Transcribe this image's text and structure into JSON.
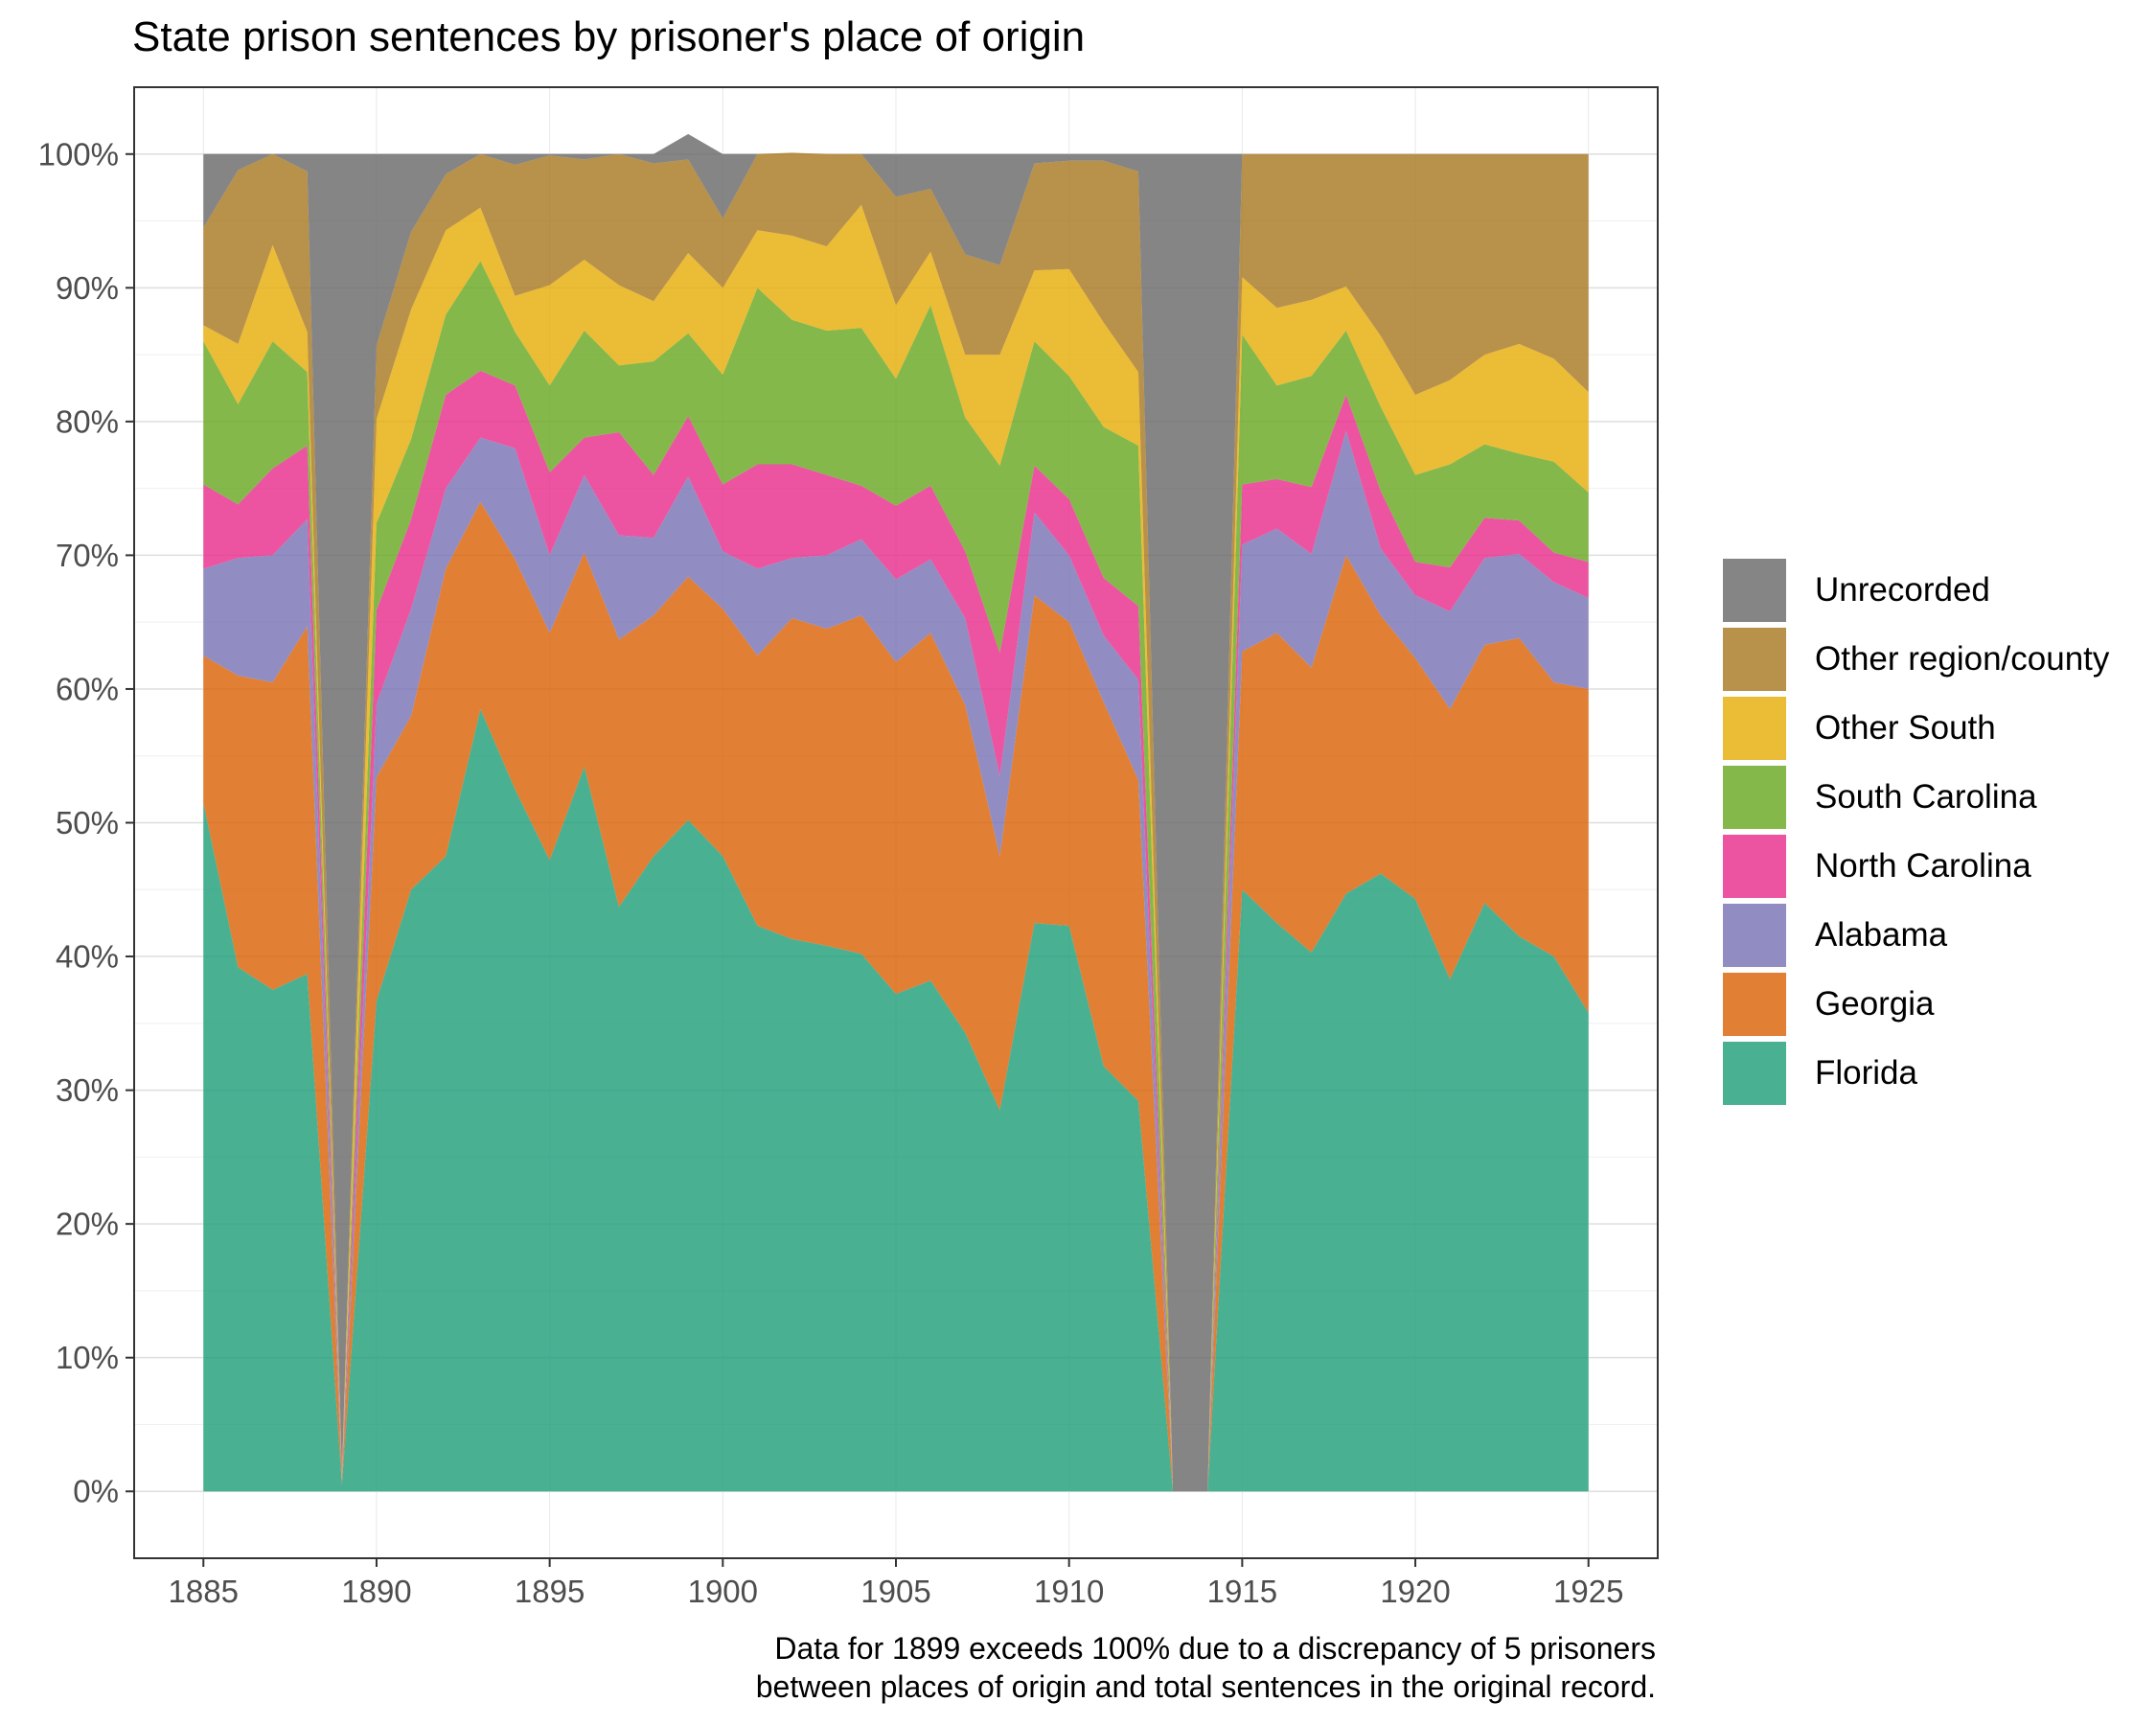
{
  "chart_data": {
    "type": "area",
    "stacked": true,
    "title": "State prison sentences by prisoner's place of origin",
    "caption_lines": [
      "Data for 1899 exceeds 100% due to a discrepancy of 5 prisoners",
      "between places of origin and total sentences in the original record."
    ],
    "xlim": [
      1883,
      1927
    ],
    "ylim": [
      -0.05,
      1.05
    ],
    "x_ticks": [
      1885,
      1890,
      1895,
      1900,
      1905,
      1910,
      1915,
      1920,
      1925
    ],
    "x_tick_labels": [
      "1885",
      "1890",
      "1895",
      "1900",
      "1905",
      "1910",
      "1915",
      "1920",
      "1925"
    ],
    "y_ticks": [
      0,
      0.1,
      0.2,
      0.3,
      0.4,
      0.5,
      0.6,
      0.7,
      0.8,
      0.9,
      1.0
    ],
    "y_tick_labels": [
      "0%",
      "10%",
      "20%",
      "30%",
      "40%",
      "50%",
      "60%",
      "70%",
      "80%",
      "90%",
      "100%"
    ],
    "grid": true,
    "legend_position": "right",
    "x": [
      1885,
      1886,
      1887,
      1888,
      1889,
      1890,
      1891,
      1892,
      1893,
      1894,
      1895,
      1896,
      1897,
      1898,
      1899,
      1900,
      1901,
      1902,
      1903,
      1904,
      1905,
      1906,
      1907,
      1908,
      1909,
      1910,
      1911,
      1912,
      1913,
      1914,
      1915,
      1916,
      1917,
      1918,
      1919,
      1920,
      1921,
      1922,
      1923,
      1924,
      1925
    ],
    "series": [
      {
        "name": "Florida",
        "color": "#1b9e77",
        "values": [
          0.515,
          0.392,
          0.375,
          0.387,
          0.005,
          0.367,
          0.45,
          0.475,
          0.585,
          0.525,
          0.472,
          0.542,
          0.437,
          0.475,
          0.502,
          0.475,
          0.423,
          0.413,
          0.408,
          0.402,
          0.372,
          0.382,
          0.343,
          0.285,
          0.425,
          0.423,
          0.318,
          0.292,
          0,
          0,
          0.45,
          0.425,
          0.403,
          0.447,
          0.462,
          0.443,
          0.383,
          0.44,
          0.415,
          0.4,
          0.358
        ]
      },
      {
        "name": "Georgia",
        "color": "#d95f02",
        "values": [
          0.11,
          0.218,
          0.23,
          0.26,
          0.002,
          0.167,
          0.13,
          0.215,
          0.155,
          0.172,
          0.17,
          0.16,
          0.2,
          0.18,
          0.182,
          0.185,
          0.202,
          0.24,
          0.237,
          0.253,
          0.248,
          0.26,
          0.245,
          0.19,
          0.245,
          0.227,
          0.272,
          0.24,
          0,
          0,
          0.178,
          0.217,
          0.213,
          0.253,
          0.193,
          0.18,
          0.202,
          0.193,
          0.223,
          0.205,
          0.242
        ]
      },
      {
        "name": "Alabama",
        "color": "#7570b3",
        "values": [
          0.065,
          0.088,
          0.095,
          0.08,
          0.001,
          0.055,
          0.08,
          0.06,
          0.048,
          0.083,
          0.058,
          0.058,
          0.078,
          0.058,
          0.075,
          0.043,
          0.065,
          0.045,
          0.055,
          0.057,
          0.062,
          0.055,
          0.065,
          0.06,
          0.062,
          0.05,
          0.05,
          0.075,
          0,
          0,
          0.08,
          0.078,
          0.085,
          0.093,
          0.05,
          0.047,
          0.073,
          0.065,
          0.063,
          0.075,
          0.068
        ]
      },
      {
        "name": "North Carolina",
        "color": "#e7298a",
        "values": [
          0.063,
          0.04,
          0.065,
          0.055,
          0.001,
          0.07,
          0.067,
          0.07,
          0.05,
          0.047,
          0.062,
          0.028,
          0.077,
          0.047,
          0.045,
          0.05,
          0.078,
          0.07,
          0.06,
          0.04,
          0.055,
          0.055,
          0.05,
          0.092,
          0.035,
          0.042,
          0.043,
          0.055,
          0,
          0,
          0.045,
          0.037,
          0.05,
          0.027,
          0.043,
          0.025,
          0.033,
          0.03,
          0.025,
          0.022,
          0.027
        ]
      },
      {
        "name": "South Carolina",
        "color": "#66a61e",
        "values": [
          0.107,
          0.075,
          0.095,
          0.055,
          0.001,
          0.065,
          0.06,
          0.06,
          0.082,
          0.04,
          0.065,
          0.08,
          0.05,
          0.085,
          0.062,
          0.082,
          0.132,
          0.108,
          0.108,
          0.118,
          0.095,
          0.135,
          0.1,
          0.14,
          0.093,
          0.092,
          0.113,
          0.12,
          0,
          0,
          0.112,
          0.07,
          0.083,
          0.048,
          0.063,
          0.065,
          0.077,
          0.055,
          0.05,
          0.068,
          0.052
        ]
      },
      {
        "name": "Other South",
        "color": "#e6ab02",
        "values": [
          0.012,
          0.045,
          0.072,
          0.03,
          0.001,
          0.078,
          0.097,
          0.063,
          0.04,
          0.027,
          0.075,
          0.053,
          0.06,
          0.045,
          0.06,
          0.065,
          0.043,
          0.063,
          0.063,
          0.092,
          0.055,
          0.04,
          0.047,
          0.083,
          0.053,
          0.08,
          0.078,
          0.055,
          0,
          0,
          0.043,
          0.058,
          0.057,
          0.033,
          0.053,
          0.06,
          0.063,
          0.067,
          0.082,
          0.077,
          0.075
        ]
      },
      {
        "name": "Other region/county",
        "color": "#a6761d",
        "values": [
          0.073,
          0.13,
          0.068,
          0.12,
          0.002,
          0.055,
          0.058,
          0.042,
          0.04,
          0.098,
          0.097,
          0.075,
          0.098,
          0.103,
          0.07,
          0.052,
          0.057,
          0.062,
          0.069,
          0.038,
          0.081,
          0.047,
          0.075,
          0.067,
          0.08,
          0.081,
          0.121,
          0.15,
          0,
          0,
          0.092,
          0.115,
          0.109,
          0.099,
          0.136,
          0.18,
          0.169,
          0.15,
          0.142,
          0.153,
          0.178
        ]
      },
      {
        "name": "Unrecorded",
        "color": "#666666",
        "values": [
          0.055,
          0.012,
          0,
          0.013,
          0.987,
          0.143,
          0.058,
          0.015,
          0,
          0.008,
          0.001,
          0.004,
          0,
          0.007,
          0.019,
          0.048,
          0,
          0,
          0,
          0,
          0.032,
          0.026,
          0.075,
          0.083,
          0.007,
          0.005,
          0.005,
          0.013,
          1.0,
          1.0,
          0,
          0,
          0,
          0,
          0,
          0,
          0,
          0,
          0,
          0,
          0
        ]
      }
    ]
  }
}
